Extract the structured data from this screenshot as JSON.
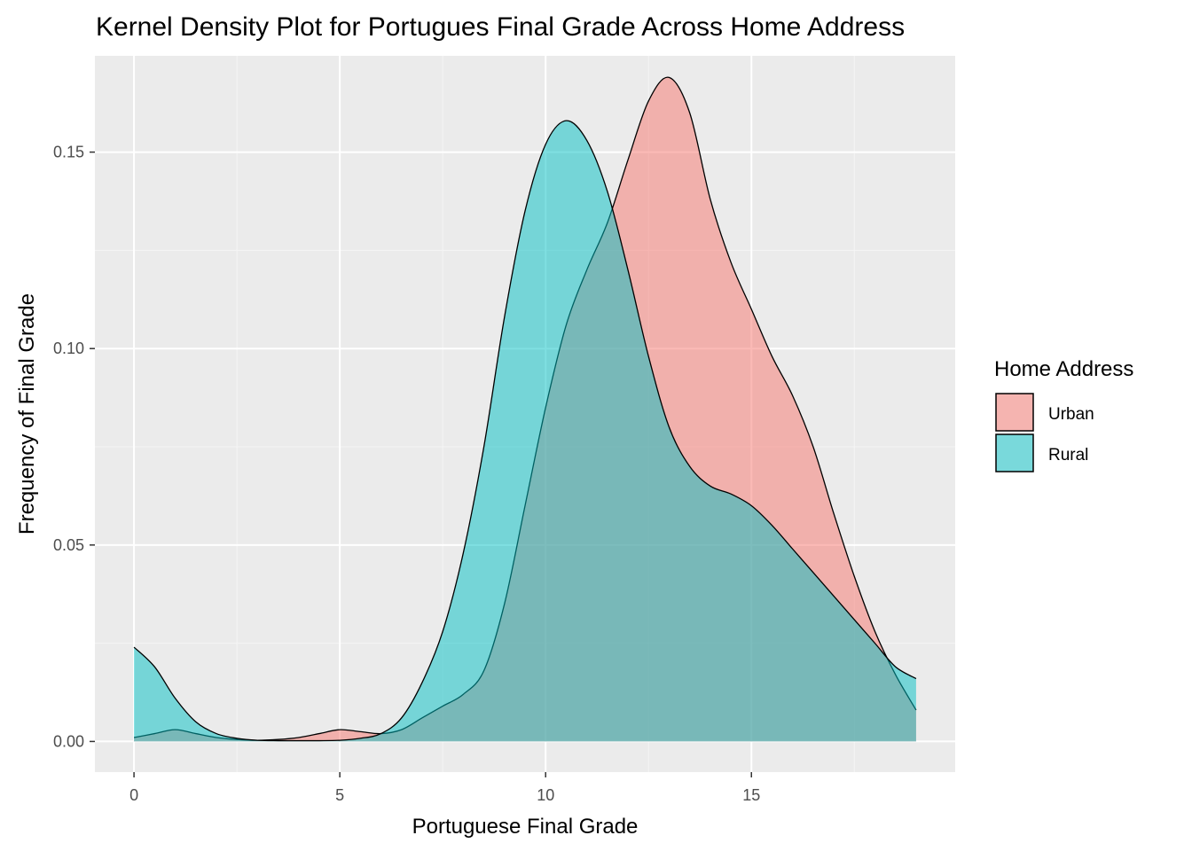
{
  "chart_data": {
    "type": "area",
    "title": "Kernel Density Plot for Portugues Final Grade Across Home Address",
    "xlabel": "Portuguese Final Grade",
    "ylabel": "Frequency of Final Grade",
    "xlim": [
      -0.95,
      19.95
    ],
    "ylim": [
      -0.0078,
      0.1745
    ],
    "x_ticks": [
      0,
      5,
      10,
      15
    ],
    "x_tick_labels": [
      "0",
      "5",
      "10",
      "15"
    ],
    "y_ticks": [
      0.0,
      0.05,
      0.1,
      0.15
    ],
    "y_tick_labels": [
      "0.00",
      "0.05",
      "0.10",
      "0.15"
    ],
    "grid": true,
    "legend": {
      "title": "Home Address",
      "position": "right"
    },
    "series": [
      {
        "name": "Urban",
        "color": "#F8766D",
        "x": [
          0,
          0.5,
          1,
          1.5,
          2,
          2.5,
          3,
          3.5,
          4,
          4.5,
          5,
          5.5,
          6,
          6.5,
          7,
          7.5,
          8,
          8.5,
          9,
          9.5,
          10,
          10.5,
          11,
          11.5,
          12,
          12.5,
          13,
          13.5,
          14,
          14.5,
          15,
          15.5,
          16,
          16.5,
          17,
          17.5,
          18,
          18.5,
          19
        ],
        "y": [
          0.001,
          0.002,
          0.003,
          0.002,
          0.001,
          0.0005,
          0.0003,
          0.0005,
          0.001,
          0.002,
          0.003,
          0.0025,
          0.002,
          0.003,
          0.006,
          0.009,
          0.012,
          0.018,
          0.035,
          0.06,
          0.085,
          0.106,
          0.12,
          0.132,
          0.148,
          0.163,
          0.169,
          0.16,
          0.138,
          0.122,
          0.11,
          0.098,
          0.088,
          0.075,
          0.058,
          0.042,
          0.028,
          0.017,
          0.008
        ]
      },
      {
        "name": "Rural",
        "color": "#00BFC4",
        "x": [
          0,
          0.5,
          1,
          1.5,
          2,
          2.5,
          3,
          3.5,
          4,
          4.5,
          5,
          5.5,
          6,
          6.5,
          7,
          7.5,
          8,
          8.5,
          9,
          9.5,
          10,
          10.5,
          11,
          11.5,
          12,
          12.5,
          13,
          13.5,
          14,
          14.5,
          15,
          15.5,
          16,
          16.5,
          17,
          17.5,
          18,
          18.5,
          19
        ],
        "y": [
          0.024,
          0.019,
          0.011,
          0.005,
          0.002,
          0.0008,
          0.0003,
          0.0002,
          0.0002,
          0.0002,
          0.0003,
          0.0008,
          0.002,
          0.006,
          0.015,
          0.028,
          0.048,
          0.075,
          0.108,
          0.135,
          0.152,
          0.158,
          0.153,
          0.14,
          0.12,
          0.098,
          0.08,
          0.07,
          0.065,
          0.063,
          0.06,
          0.055,
          0.049,
          0.043,
          0.037,
          0.031,
          0.025,
          0.019,
          0.016
        ]
      }
    ]
  }
}
